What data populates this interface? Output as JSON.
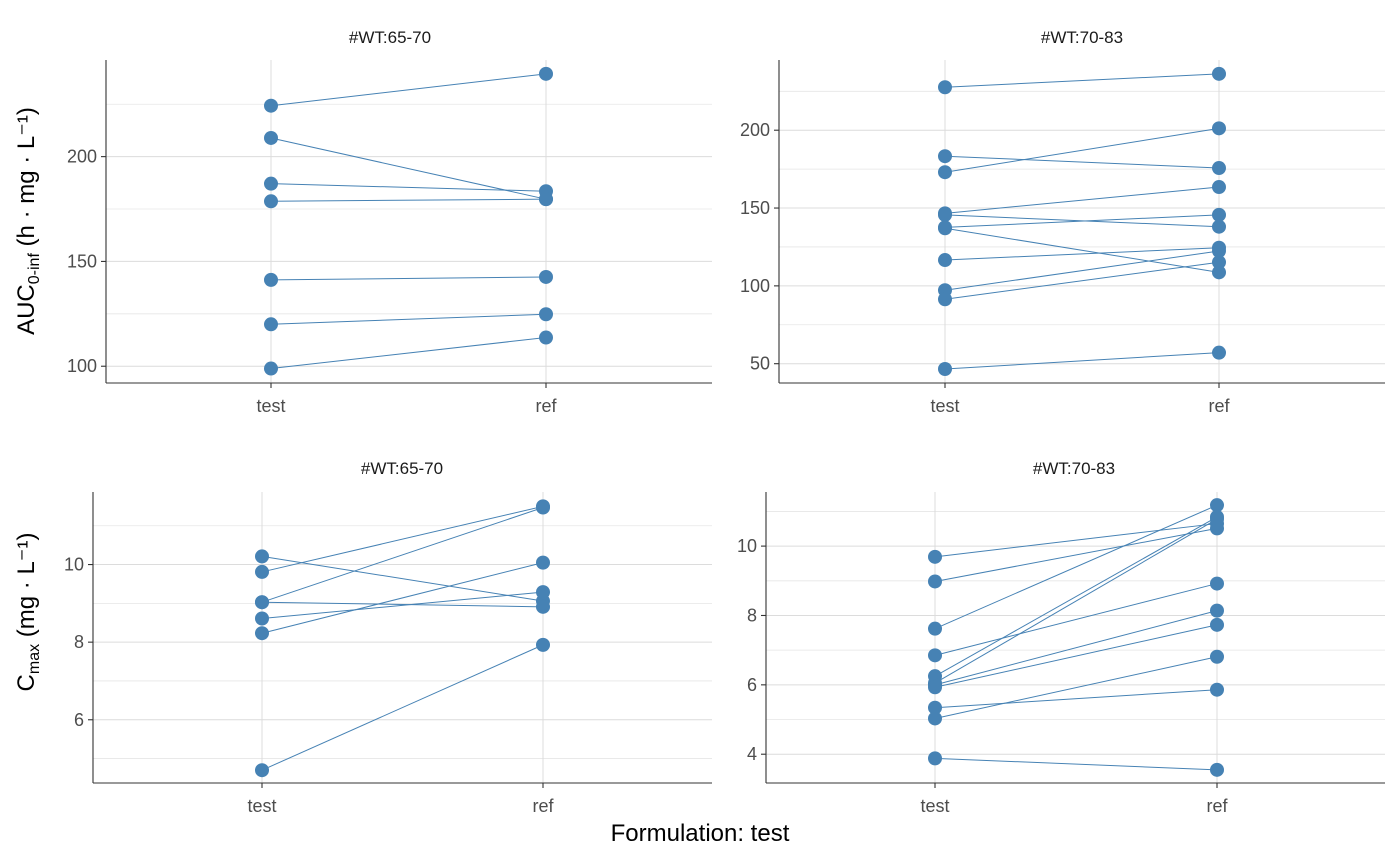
{
  "chart_data": [
    {
      "type": "line",
      "title": "#WT:65-70",
      "categories": [
        "test",
        "ref"
      ],
      "ylim": [
        92.0,
        246.1
      ],
      "yticks": [
        100,
        150,
        200
      ],
      "grid": true,
      "color": "#4682B4",
      "series": [
        {
          "values": [
            224.3,
            239.5
          ]
        },
        {
          "values": [
            208.9,
            179.7
          ]
        },
        {
          "values": [
            187.1,
            183.5
          ]
        },
        {
          "values": [
            178.7,
            179.7
          ]
        },
        {
          "values": [
            141.2,
            142.6
          ]
        },
        {
          "values": [
            120.0,
            124.8
          ]
        },
        {
          "values": [
            98.9,
            113.7
          ]
        }
      ]
    },
    {
      "type": "line",
      "title": "#WT:70-83",
      "categories": [
        "test",
        "ref"
      ],
      "ylim": [
        37.6,
        245.1
      ],
      "yticks": [
        50,
        100,
        150,
        200
      ],
      "grid": true,
      "color": "#4682B4",
      "series": [
        {
          "values": [
            227.6,
            236.2
          ]
        },
        {
          "values": [
            183.3,
            175.7
          ]
        },
        {
          "values": [
            173.0,
            201.2
          ]
        },
        {
          "values": [
            146.6,
            163.5
          ]
        },
        {
          "values": [
            145.6,
            138.0
          ]
        },
        {
          "values": [
            137.6,
            145.6
          ]
        },
        {
          "values": [
            137.0,
            108.7
          ]
        },
        {
          "values": [
            116.6,
            124.5
          ]
        },
        {
          "values": [
            97.2,
            122.4
          ]
        },
        {
          "values": [
            91.4,
            115.2
          ]
        },
        {
          "values": [
            46.6,
            57.1
          ]
        }
      ]
    },
    {
      "type": "line",
      "title": "#WT:65-70",
      "categories": [
        "test",
        "ref"
      ],
      "ylim": [
        4.37,
        11.87
      ],
      "yticks": [
        6,
        8,
        10
      ],
      "grid": true,
      "color": "#4682B4",
      "series": [
        {
          "values": [
            10.21,
            9.06
          ]
        },
        {
          "values": [
            9.81,
            11.5
          ]
        },
        {
          "values": [
            9.03,
            11.47
          ]
        },
        {
          "values": [
            9.03,
            8.91
          ]
        },
        {
          "values": [
            8.61,
            9.29
          ]
        },
        {
          "values": [
            8.23,
            10.05
          ]
        },
        {
          "values": [
            4.7,
            7.93
          ]
        }
      ]
    },
    {
      "type": "line",
      "title": "#WT:70-83",
      "categories": [
        "test",
        "ref"
      ],
      "ylim": [
        3.17,
        11.56
      ],
      "yticks": [
        4,
        6,
        8,
        10
      ],
      "grid": true,
      "color": "#4682B4",
      "series": [
        {
          "values": [
            9.69,
            10.65
          ]
        },
        {
          "values": [
            8.98,
            10.51
          ]
        },
        {
          "values": [
            7.62,
            11.18
          ]
        },
        {
          "values": [
            6.85,
            8.92
          ]
        },
        {
          "values": [
            6.25,
            10.84
          ]
        },
        {
          "values": [
            6.05,
            10.78
          ]
        },
        {
          "values": [
            6.0,
            8.14
          ]
        },
        {
          "values": [
            5.93,
            7.73
          ]
        },
        {
          "values": [
            5.34,
            5.86
          ]
        },
        {
          "values": [
            5.03,
            6.81
          ]
        },
        {
          "values": [
            3.88,
            3.55
          ]
        }
      ]
    }
  ],
  "ylabels": {
    "auc": {
      "main": "AUC",
      "sub": "0-inf",
      "units": " (h · mg · L⁻¹)"
    },
    "cmax": {
      "main": "C",
      "sub": "max",
      "units": " (mg · L⁻¹)"
    }
  },
  "xlabel": "Formulation: test"
}
